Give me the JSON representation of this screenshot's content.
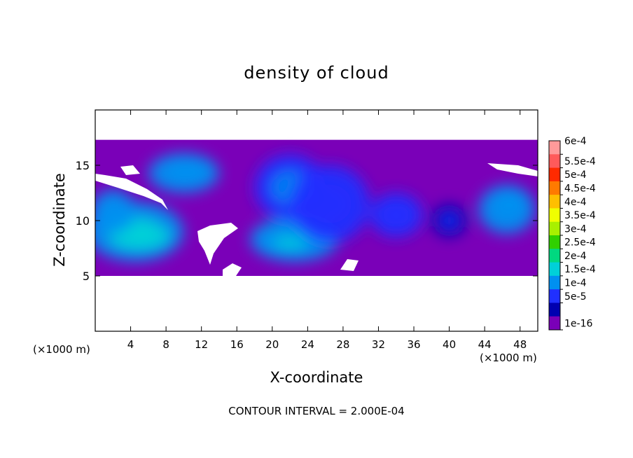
{
  "chart_data": {
    "type": "heatmap",
    "title": "density of cloud",
    "xlabel": "X-coordinate",
    "ylabel": "Z-coordinate",
    "x_unit_left": "(×1000 m)",
    "x_unit_right": "(×1000 m)",
    "footer": "CONTOUR INTERVAL = 2.000E-04",
    "xlim": [
      0,
      50
    ],
    "ylim": [
      0,
      20
    ],
    "xticks": [
      4,
      8,
      12,
      16,
      20,
      24,
      28,
      32,
      36,
      40,
      44,
      48
    ],
    "yticks": [
      5,
      10,
      15
    ],
    "colorbar": {
      "labels": [
        "6e-4",
        "5.5e-4",
        "5e-4",
        "4.5e-4",
        "4e-4",
        "3.5e-4",
        "3e-4",
        "2.5e-4",
        "2e-4",
        "1.5e-4",
        "1e-4",
        "5e-5",
        "1e-16"
      ],
      "colors": [
        "#ff9a9a",
        "#ff5a5a",
        "#ff2a00",
        "#ff7a00",
        "#ffbf00",
        "#f0ff00",
        "#a8f000",
        "#30d000",
        "#00d880",
        "#00d0d8",
        "#0090f0",
        "#2030ff",
        "#0000b0",
        "#7a00b8"
      ]
    },
    "cloud_layer": {
      "z_bottom": 5,
      "z_top": 17.3
    },
    "blobs": [
      {
        "x": 4.5,
        "z": 9.0,
        "rx": 5.5,
        "rz": 2.7,
        "value": 0.00015
      },
      {
        "x": 5.0,
        "z": 8.6,
        "rx": 3.5,
        "rz": 1.3,
        "value": 0.00016
      },
      {
        "x": 2.0,
        "z": 10.8,
        "rx": 2.5,
        "rz": 2.0,
        "value": 0.00011
      },
      {
        "x": 10.0,
        "z": 14.3,
        "rx": 4.0,
        "rz": 1.8,
        "value": 0.0001
      },
      {
        "x": 10.5,
        "z": 14.5,
        "rx": 2.5,
        "rz": 1.0,
        "value": 0.00012
      },
      {
        "x": 22.5,
        "z": 8.3,
        "rx": 5.0,
        "rz": 2.0,
        "value": 0.00013
      },
      {
        "x": 22.0,
        "z": 8.0,
        "rx": 3.5,
        "rz": 1.2,
        "value": 0.00015
      },
      {
        "x": 22.0,
        "z": 13.0,
        "rx": 4.0,
        "rz": 3.0,
        "value": 8e-05
      },
      {
        "x": 26.5,
        "z": 11.5,
        "rx": 4.5,
        "rz": 3.5,
        "value": 7e-05
      },
      {
        "x": 34.0,
        "z": 10.5,
        "rx": 3.0,
        "rz": 2.0,
        "value": 6e-05
      },
      {
        "x": 46.5,
        "z": 11.0,
        "rx": 3.2,
        "rz": 2.2,
        "value": 0.00011
      },
      {
        "x": 47.0,
        "z": 11.8,
        "rx": 2.0,
        "rz": 1.2,
        "value": 0.00013
      },
      {
        "x": 40.0,
        "z": 10.0,
        "rx": 2.0,
        "rz": 1.5,
        "value": 4e-05
      }
    ]
  }
}
